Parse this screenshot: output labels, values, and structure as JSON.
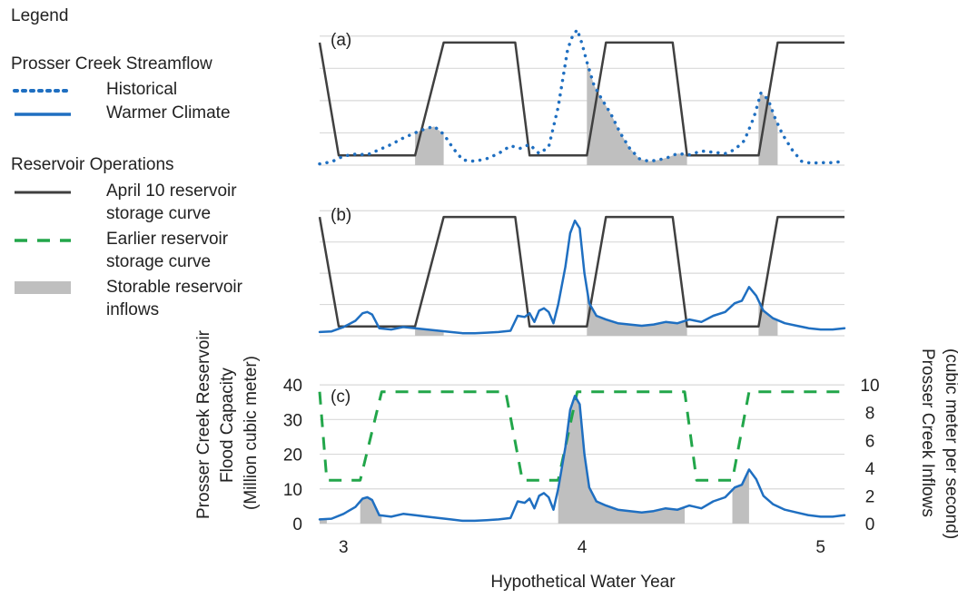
{
  "colors": {
    "operations": "#404040",
    "flow": "#1f6fc1",
    "earlier_curve": "#22a64a",
    "storable": "#bfbfbf",
    "grid": "#d9d9d9"
  },
  "legend": {
    "title": "Legend",
    "group_streamflow": "Prosser Creek Streamflow",
    "historical": "Historical",
    "warmer": "Warmer Climate",
    "group_operations": "Reservoir Operations",
    "april_line1": "April 10 reservoir",
    "april_line2": "storage curve",
    "earlier_line1": "Earlier reservoir",
    "earlier_line2": "storage curve",
    "storable_line1": "Storable reservoir",
    "storable_line2": "inflows"
  },
  "chart_data": {
    "type": "line",
    "xlabel": "Hypothetical Water Year",
    "x_range": [
      2.9,
      5.1
    ],
    "x_ticks": [
      "3",
      "4",
      "5"
    ],
    "x_tick_values": [
      3,
      4,
      5
    ],
    "left_axis": {
      "label_lines": [
        "Prosser Creek Reservoir",
        "Flood Capacity",
        "(Million cubic meter)"
      ],
      "ticks": [
        "0",
        "10",
        "20",
        "30",
        "40"
      ],
      "range": [
        0,
        45
      ]
    },
    "right_axis": {
      "label_lines": [
        "Prosser Creek Inflows",
        "(cubic meter per second)"
      ],
      "ticks": [
        "0",
        "2",
        "4",
        "6",
        "8",
        "10"
      ],
      "range": [
        0,
        11.25
      ]
    },
    "panels": [
      {
        "label": "(a)",
        "flow_series": "Historical",
        "curve_series": "April 10 reservoir storage curve"
      },
      {
        "label": "(b)",
        "flow_series": "Warmer Climate",
        "curve_series": "April 10 reservoir storage curve"
      },
      {
        "label": "(c)",
        "flow_series": "Warmer Climate",
        "curve_series": "Earlier reservoir storage curve"
      }
    ],
    "storage_curves": {
      "april10": {
        "x": [
          2.9,
          2.98,
          3.3,
          3.42,
          3.72,
          3.78,
          4.02,
          4.1,
          4.38,
          4.44,
          4.74,
          4.82,
          5.1
        ],
        "y": [
          38,
          3,
          3,
          38,
          38,
          3,
          3,
          38,
          38,
          3,
          3,
          38,
          38
        ]
      },
      "earlier": {
        "x": [
          2.9,
          2.93,
          3.07,
          3.16,
          3.68,
          3.75,
          3.9,
          3.98,
          4.43,
          4.48,
          4.63,
          4.7,
          5.1
        ],
        "y": [
          38,
          12.5,
          12.5,
          38,
          38,
          12.5,
          12.5,
          38,
          38,
          12.5,
          12.5,
          38,
          38
        ]
      }
    },
    "historical_flow": {
      "x": [
        2.9,
        2.95,
        3.0,
        3.05,
        3.1,
        3.15,
        3.2,
        3.25,
        3.3,
        3.34,
        3.38,
        3.42,
        3.46,
        3.5,
        3.55,
        3.6,
        3.65,
        3.7,
        3.74,
        3.78,
        3.82,
        3.86,
        3.9,
        3.94,
        3.96,
        3.98,
        4.0,
        4.02,
        4.05,
        4.08,
        4.12,
        4.16,
        4.2,
        4.24,
        4.28,
        4.32,
        4.36,
        4.4,
        4.45,
        4.5,
        4.55,
        4.6,
        4.64,
        4.68,
        4.72,
        4.75,
        4.78,
        4.81,
        4.84,
        4.88,
        4.92,
        4.96,
        5.0,
        5.05,
        5.1
      ],
      "y": [
        0.1,
        0.25,
        0.7,
        0.85,
        0.8,
        1.2,
        1.6,
        2.1,
        2.5,
        2.8,
        3.0,
        2.4,
        1.3,
        0.4,
        0.3,
        0.5,
        0.9,
        1.5,
        1.3,
        1.6,
        0.9,
        1.4,
        4.5,
        9.0,
        10.0,
        10.5,
        9.4,
        8.0,
        6.2,
        5.2,
        4.0,
        2.5,
        1.3,
        0.5,
        0.3,
        0.4,
        0.6,
        0.9,
        0.8,
        1.1,
        1.0,
        0.9,
        1.2,
        1.9,
        3.7,
        5.6,
        5.1,
        3.6,
        2.4,
        1.2,
        0.3,
        0.15,
        0.2,
        0.2,
        0.3
      ]
    },
    "warmer_flow": {
      "x": [
        2.9,
        2.95,
        3.0,
        3.05,
        3.08,
        3.1,
        3.12,
        3.15,
        3.2,
        3.25,
        3.3,
        3.35,
        3.4,
        3.45,
        3.5,
        3.55,
        3.6,
        3.65,
        3.7,
        3.73,
        3.76,
        3.78,
        3.8,
        3.82,
        3.84,
        3.86,
        3.88,
        3.9,
        3.93,
        3.95,
        3.97,
        3.99,
        4.01,
        4.03,
        4.06,
        4.1,
        4.15,
        4.2,
        4.25,
        4.3,
        4.35,
        4.4,
        4.45,
        4.5,
        4.55,
        4.6,
        4.64,
        4.67,
        4.7,
        4.73,
        4.76,
        4.8,
        4.85,
        4.9,
        4.95,
        5.0,
        5.05,
        5.1
      ],
      "y": [
        0.3,
        0.35,
        0.7,
        1.2,
        1.8,
        1.9,
        1.7,
        0.6,
        0.5,
        0.7,
        0.6,
        0.5,
        0.4,
        0.3,
        0.2,
        0.2,
        0.25,
        0.3,
        0.4,
        1.6,
        1.5,
        1.8,
        1.1,
        2.0,
        2.2,
        1.9,
        1.0,
        2.5,
        5.5,
        8.2,
        9.2,
        8.6,
        5.0,
        2.6,
        1.6,
        1.3,
        1.0,
        0.9,
        0.8,
        0.9,
        1.1,
        1.0,
        1.3,
        1.1,
        1.6,
        1.9,
        2.6,
        2.8,
        3.9,
        3.2,
        2.0,
        1.4,
        1.0,
        0.8,
        0.6,
        0.5,
        0.5,
        0.6
      ]
    },
    "storable_windows": {
      "april10": [
        [
          3.3,
          3.42
        ],
        [
          4.02,
          4.44
        ],
        [
          4.74,
          4.82
        ]
      ],
      "earlier": [
        [
          2.9,
          2.93
        ],
        [
          3.07,
          3.16
        ],
        [
          3.9,
          4.43
        ],
        [
          4.63,
          4.7
        ]
      ]
    }
  }
}
